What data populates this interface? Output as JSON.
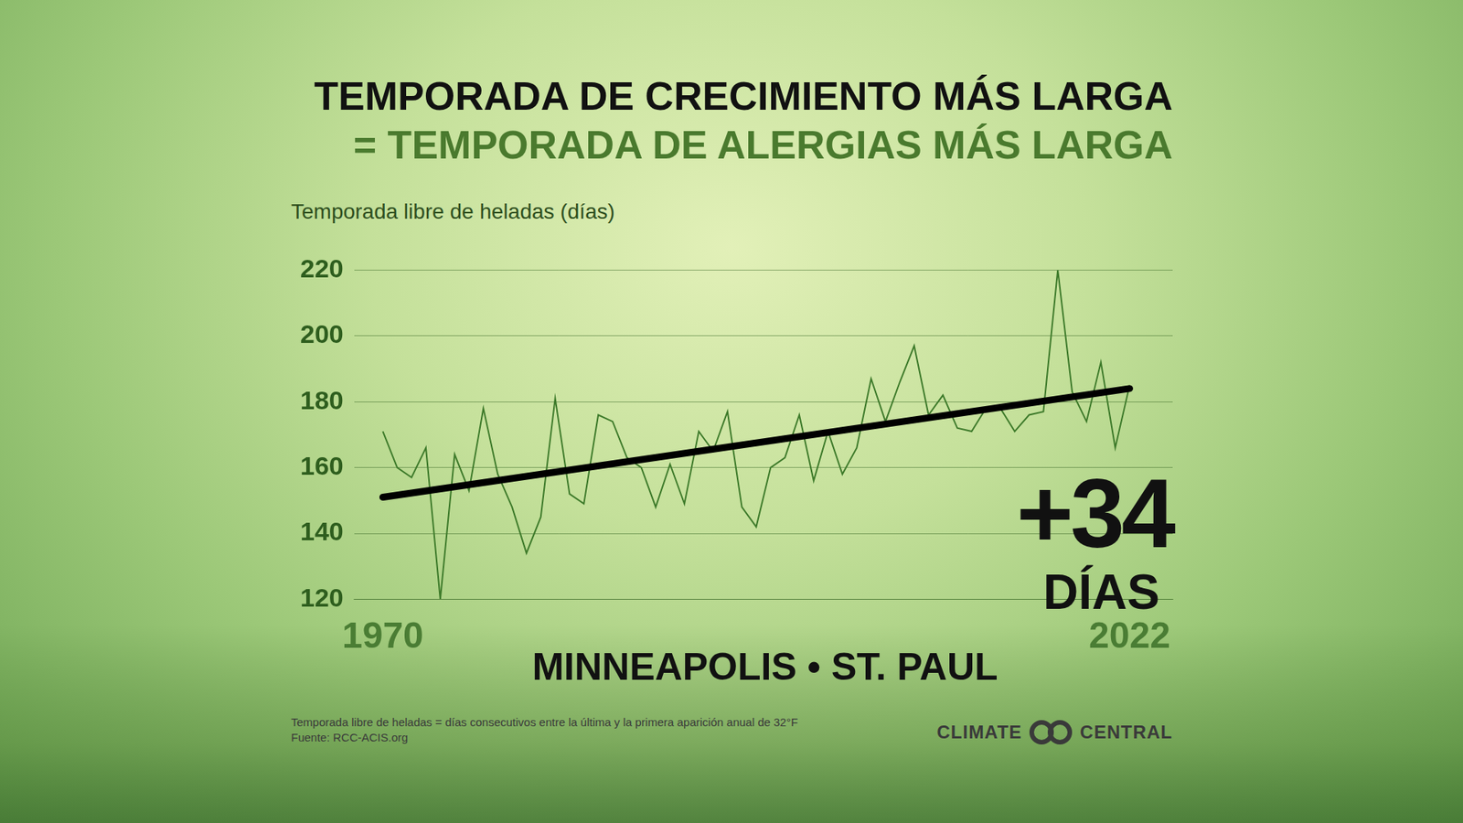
{
  "chart_data": {
    "type": "line",
    "title": "TEMPORADA DE CRECIMIENTO MÁS LARGA",
    "subtitle": "= TEMPORADA DE ALERGIAS MÁS LARGA",
    "y_label": "Temporada libre de heladas (días)",
    "location": "MINNEAPOLIS • ST. PAUL",
    "annotations": [
      "+34",
      "DÍAS"
    ],
    "footnotes": [
      "Temporada libre de heladas = días consecutivos entre la última y la primera aparición anual de 32°F",
      "Fuente: RCC-ACIS.org"
    ],
    "logo": [
      "CLIMATE",
      "CENTRAL"
    ],
    "x": [
      1970,
      1971,
      1972,
      1973,
      1974,
      1975,
      1976,
      1977,
      1978,
      1979,
      1980,
      1981,
      1982,
      1983,
      1984,
      1985,
      1986,
      1987,
      1988,
      1989,
      1990,
      1991,
      1992,
      1993,
      1994,
      1995,
      1996,
      1997,
      1998,
      1999,
      2000,
      2001,
      2002,
      2003,
      2004,
      2005,
      2006,
      2007,
      2008,
      2009,
      2010,
      2011,
      2012,
      2013,
      2014,
      2015,
      2016,
      2017,
      2018,
      2019,
      2020,
      2021,
      2022
    ],
    "series": [
      {
        "color": "#3d7a2a",
        "values": [
          171,
          160,
          157,
          166,
          120,
          164,
          153,
          178,
          158,
          148,
          134,
          145,
          181,
          152,
          149,
          176,
          174,
          163,
          160,
          148,
          161,
          149,
          171,
          165,
          177,
          148,
          142,
          160,
          163,
          176,
          156,
          171,
          158,
          166,
          187,
          174,
          186,
          197,
          176,
          182,
          172,
          171,
          178,
          178,
          171,
          176,
          177,
          220,
          183,
          174,
          192,
          166,
          185
        ]
      }
    ],
    "trend": {
      "x": [
        1970,
        2022
      ],
      "values": [
        151,
        184
      ],
      "color": "#000000"
    },
    "xlim": [
      1968,
      2025
    ],
    "xticks": [
      1970,
      2022
    ],
    "ylim": [
      120,
      220
    ],
    "yticks": [
      120,
      140,
      160,
      180,
      200,
      220
    ],
    "grid": true
  }
}
